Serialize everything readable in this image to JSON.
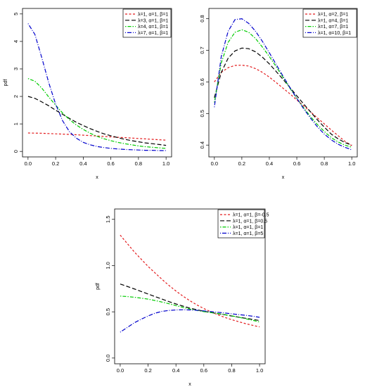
{
  "chart_data": [
    {
      "type": "line",
      "xlabel": "x",
      "ylabel": "pdf",
      "xlim": [
        0,
        1
      ],
      "ylim": [
        0,
        5
      ],
      "xticks": [
        "0.0",
        "0.2",
        "0.4",
        "0.6",
        "0.8",
        "1.0"
      ],
      "yticks": [
        "0",
        "1",
        "2",
        "3",
        "4",
        "5"
      ],
      "legend_position": "top-right",
      "x": [
        0,
        0.05,
        0.1,
        0.15,
        0.2,
        0.25,
        0.3,
        0.35,
        0.4,
        0.45,
        0.5,
        0.55,
        0.6,
        0.65,
        0.7,
        0.75,
        0.8,
        0.85,
        0.9,
        0.95,
        1.0
      ],
      "series": [
        {
          "name": "λ=1, α=1, β=1",
          "color": "#e31a1c",
          "dash": "dashed",
          "values": [
            0.67,
            0.665,
            0.66,
            0.65,
            0.64,
            0.63,
            0.62,
            0.605,
            0.59,
            0.575,
            0.56,
            0.545,
            0.53,
            0.515,
            0.5,
            0.485,
            0.47,
            0.455,
            0.44,
            0.425,
            0.41
          ]
        },
        {
          "name": "λ=3, α=1, β=1",
          "color": "#000000",
          "dash": "longdash",
          "values": [
            2.0,
            1.93,
            1.8,
            1.66,
            1.5,
            1.35,
            1.2,
            1.06,
            0.94,
            0.83,
            0.73,
            0.64,
            0.57,
            0.5,
            0.44,
            0.39,
            0.35,
            0.31,
            0.28,
            0.25,
            0.22
          ]
        },
        {
          "name": "λ=4, α=1, β=1",
          "color": "#00cc00",
          "dash": "dotdash",
          "values": [
            2.65,
            2.55,
            2.3,
            1.98,
            1.68,
            1.4,
            1.16,
            0.96,
            0.8,
            0.66,
            0.55,
            0.46,
            0.39,
            0.33,
            0.28,
            0.24,
            0.2,
            0.17,
            0.15,
            0.13,
            0.11
          ]
        },
        {
          "name": "λ=7, α=1, β=1",
          "color": "#0000cc",
          "dash": "dotlong",
          "values": [
            4.65,
            4.25,
            3.4,
            2.5,
            1.72,
            1.12,
            0.72,
            0.48,
            0.33,
            0.24,
            0.18,
            0.14,
            0.11,
            0.09,
            0.07,
            0.06,
            0.05,
            0.04,
            0.04,
            0.03,
            0.03
          ]
        }
      ]
    },
    {
      "type": "line",
      "xlabel": "x",
      "ylabel": "",
      "xlim": [
        0,
        1
      ],
      "ylim": [
        0.38,
        0.815
      ],
      "xticks": [
        "0.0",
        "0.2",
        "0.4",
        "0.6",
        "0.8",
        "1.0"
      ],
      "yticks": [
        "0.4",
        "0.5",
        "0.6",
        "0.7",
        "0.8"
      ],
      "legend_position": "top-right",
      "x": [
        0,
        0.05,
        0.1,
        0.15,
        0.2,
        0.25,
        0.3,
        0.35,
        0.4,
        0.45,
        0.5,
        0.55,
        0.6,
        0.65,
        0.7,
        0.75,
        0.8,
        0.85,
        0.9,
        0.95,
        1.0
      ],
      "series": [
        {
          "name": "λ=1, α=2, β=1",
          "color": "#e31a1c",
          "dash": "dashed",
          "values": [
            0.6,
            0.63,
            0.645,
            0.652,
            0.653,
            0.65,
            0.642,
            0.63,
            0.615,
            0.598,
            0.58,
            0.562,
            0.543,
            0.524,
            0.505,
            0.486,
            0.467,
            0.448,
            0.43,
            0.412,
            0.398
          ]
        },
        {
          "name": "λ=1, α=4, β=1",
          "color": "#000000",
          "dash": "longdash",
          "values": [
            0.55,
            0.63,
            0.675,
            0.698,
            0.707,
            0.705,
            0.695,
            0.678,
            0.657,
            0.633,
            0.608,
            0.582,
            0.556,
            0.53,
            0.505,
            0.48,
            0.457,
            0.435,
            0.42,
            0.408,
            0.4
          ]
        },
        {
          "name": "λ=1, α=7, β=1",
          "color": "#00cc00",
          "dash": "dotdash",
          "values": [
            0.535,
            0.66,
            0.725,
            0.757,
            0.765,
            0.757,
            0.737,
            0.71,
            0.68,
            0.648,
            0.614,
            0.58,
            0.548,
            0.518,
            0.49,
            0.465,
            0.443,
            0.424,
            0.41,
            0.4,
            0.393
          ]
        },
        {
          "name": "λ=1, α=10, β=1",
          "color": "#0000cc",
          "dash": "dotlong",
          "values": [
            0.52,
            0.68,
            0.76,
            0.797,
            0.8,
            0.785,
            0.76,
            0.728,
            0.692,
            0.655,
            0.618,
            0.582,
            0.548,
            0.515,
            0.485,
            0.458,
            0.435,
            0.417,
            0.403,
            0.393,
            0.385
          ]
        }
      ]
    },
    {
      "type": "line",
      "xlabel": "x",
      "ylabel": "pdf",
      "xlim": [
        0,
        1
      ],
      "ylim": [
        0,
        1.55
      ],
      "xticks": [
        "0.0",
        "0.2",
        "0.4",
        "0.6",
        "0.8",
        "1.0"
      ],
      "yticks": [
        "0.0",
        "0.5",
        "1.0",
        "1.5"
      ],
      "legend_position": "top-right",
      "x": [
        0,
        0.05,
        0.1,
        0.15,
        0.2,
        0.25,
        0.3,
        0.35,
        0.4,
        0.45,
        0.5,
        0.55,
        0.6,
        0.65,
        0.7,
        0.75,
        0.8,
        0.85,
        0.9,
        0.95,
        1.0
      ],
      "series": [
        {
          "name": "λ=1, α=1, β=-0.5",
          "color": "#e31a1c",
          "dash": "dashed",
          "values": [
            1.33,
            1.24,
            1.15,
            1.07,
            0.99,
            0.92,
            0.85,
            0.785,
            0.725,
            0.67,
            0.62,
            0.575,
            0.535,
            0.5,
            0.468,
            0.44,
            0.415,
            0.393,
            0.372,
            0.354,
            0.337
          ]
        },
        {
          "name": "λ=1, α=1, β=0.5",
          "color": "#000000",
          "dash": "longdash",
          "values": [
            0.8,
            0.775,
            0.748,
            0.72,
            0.693,
            0.665,
            0.637,
            0.61,
            0.585,
            0.562,
            0.54,
            0.522,
            0.506,
            0.493,
            0.48,
            0.468,
            0.455,
            0.442,
            0.43,
            0.418,
            0.405
          ]
        },
        {
          "name": "λ=1, α=1, β=1",
          "color": "#00cc00",
          "dash": "dotdash",
          "values": [
            0.67,
            0.665,
            0.658,
            0.648,
            0.637,
            0.622,
            0.605,
            0.587,
            0.567,
            0.548,
            0.53,
            0.515,
            0.502,
            0.492,
            0.482,
            0.47,
            0.457,
            0.442,
            0.425,
            0.408,
            0.39
          ]
        },
        {
          "name": "λ=1, α=1, β=5",
          "color": "#0000cc",
          "dash": "dotlong",
          "values": [
            0.28,
            0.33,
            0.38,
            0.42,
            0.455,
            0.485,
            0.505,
            0.515,
            0.52,
            0.522,
            0.52,
            0.516,
            0.51,
            0.502,
            0.495,
            0.487,
            0.478,
            0.47,
            0.462,
            0.452,
            0.44
          ]
        }
      ]
    }
  ]
}
